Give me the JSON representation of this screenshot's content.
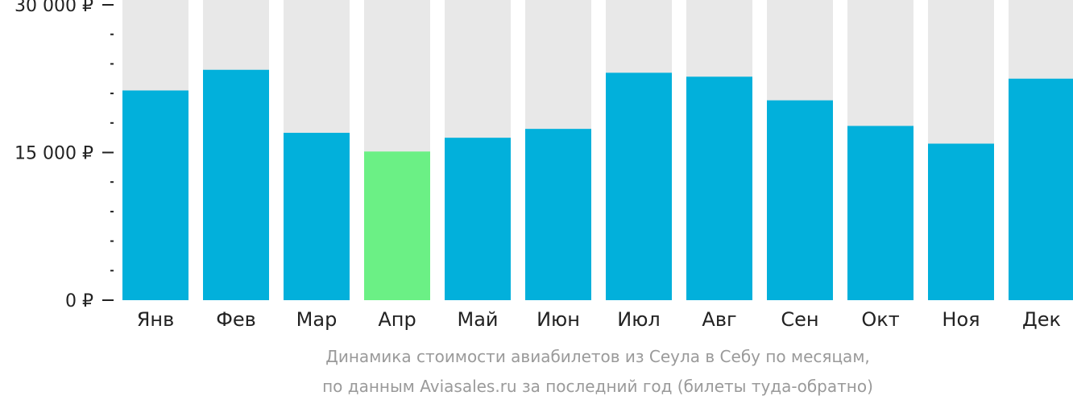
{
  "chart_data": {
    "type": "bar",
    "categories": [
      "Янв",
      "Фев",
      "Мар",
      "Апр",
      "Май",
      "Июн",
      "Июл",
      "Авг",
      "Сен",
      "Окт",
      "Ноя",
      "Дек"
    ],
    "values": [
      21300,
      23400,
      17000,
      15100,
      16500,
      17400,
      23100,
      22700,
      20300,
      17700,
      15900,
      22500
    ],
    "highlight_index": 3,
    "ylim": [
      0,
      30000
    ],
    "yticks": [
      {
        "value": 0,
        "label": "0 ₽"
      },
      {
        "value": 15000,
        "label": "15 000 ₽"
      },
      {
        "value": 30000,
        "label": "30 000 ₽"
      }
    ],
    "minor_tick_step": 3000,
    "caption": [
      "Динамика стоимости авиабилетов из Сеула в Себу по месяцам,",
      "по данным Aviasales.ru за последний год (билеты туда-обратно)"
    ],
    "colors": {
      "bar": "#02b0db",
      "highlight": "#6bf085",
      "track": "#e8e8e8",
      "axis": "#222222",
      "caption": "#9a9a9a"
    }
  }
}
